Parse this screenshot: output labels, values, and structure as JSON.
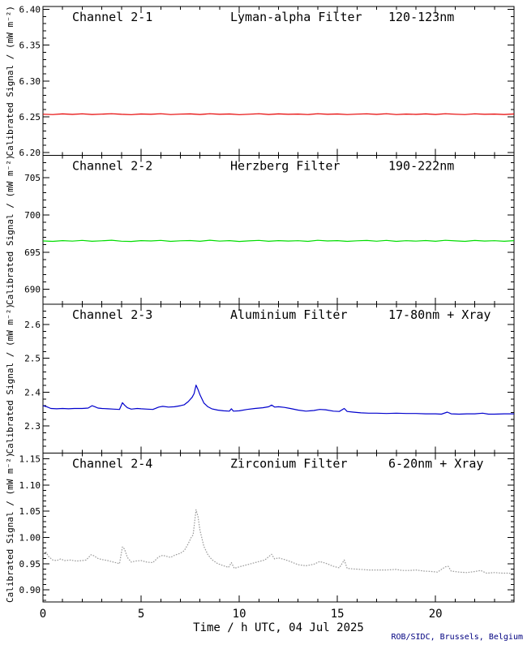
{
  "window": {
    "background": "#ffffff"
  },
  "chart_data": {
    "type": "line",
    "xlabel": "Time / h UTC, 04 Jul 2025",
    "footer": "ROB/SIDC, Brussels, Belgium",
    "footer_color": "#000080",
    "axis_color": "#000000",
    "grid": "off",
    "legend": "none",
    "x_range": [
      0,
      24
    ],
    "x_major_ticks": [
      0,
      5,
      10,
      15,
      20
    ],
    "x_tick_labels": [
      "0",
      "5",
      "10",
      "15",
      "20"
    ],
    "x_minor_step": 1,
    "panels": [
      {
        "name": "channel-2-1",
        "channel": "Channel 2-1",
        "filter": "Lyman-alpha Filter",
        "band": "120-123nm",
        "color": "#e60000",
        "style": "solid",
        "ylabel": "Calibrated Signal / (mW m⁻²)",
        "y_range": [
          6.196,
          6.404
        ],
        "y_major_ticks": [
          6.2,
          6.25,
          6.3,
          6.35,
          6.4
        ],
        "y_tick_labels": [
          "6.20",
          "6.25",
          "6.30",
          "6.35",
          "6.40"
        ],
        "y_minor_step": 0.01,
        "x0": 0,
        "dx": 0.5,
        "y": [
          6.2535,
          6.253,
          6.2539,
          6.2532,
          6.254,
          6.2531,
          6.2536,
          6.2542,
          6.2533,
          6.2529,
          6.2538,
          6.2534,
          6.2541,
          6.253,
          6.2536,
          6.2539,
          6.2531,
          6.2542,
          6.2533,
          6.2538,
          6.2529,
          6.2535,
          6.2541,
          6.2531,
          6.2539,
          6.2533,
          6.2537,
          6.253,
          6.2542,
          6.2534,
          6.2538,
          6.253,
          6.2536,
          6.254,
          6.2532,
          6.2541,
          6.253,
          6.2537,
          6.2532,
          6.2539,
          6.2531,
          6.2542,
          6.2535,
          6.253,
          6.254,
          6.2533,
          6.2537,
          6.2531,
          6.2538
        ]
      },
      {
        "name": "channel-2-2",
        "channel": "Channel 2-2",
        "filter": "Herzberg Filter",
        "band": "190-222nm",
        "color": "#00dd00",
        "style": "solid",
        "ylabel": "Calibrated Signal / (mW m⁻²)",
        "y_range": [
          688,
          708
        ],
        "y_major_ticks": [
          690,
          695,
          700,
          705
        ],
        "y_tick_labels": [
          "690",
          "695",
          "700",
          "705"
        ],
        "y_minor_step": 1,
        "x0": 0,
        "dx": 0.5,
        "y": [
          696.5,
          696.45,
          696.55,
          696.48,
          696.58,
          696.46,
          696.52,
          696.6,
          696.47,
          696.44,
          696.54,
          696.5,
          696.58,
          696.45,
          696.52,
          696.56,
          696.46,
          696.6,
          696.48,
          696.55,
          696.44,
          696.51,
          696.58,
          696.46,
          696.55,
          696.49,
          696.53,
          696.45,
          696.59,
          696.5,
          696.54,
          696.45,
          696.52,
          696.57,
          696.47,
          696.58,
          696.45,
          696.53,
          696.48,
          696.56,
          696.46,
          696.59,
          696.51,
          696.45,
          696.57,
          696.49,
          696.53,
          696.46,
          696.54
        ]
      },
      {
        "name": "channel-2-3",
        "channel": "Channel 2-3",
        "filter": "Aluminium Filter",
        "band": "17-80nm + Xray",
        "color": "#0000cd",
        "style": "solid",
        "ylabel": "Calibrated Signal / (mW m⁻²)",
        "y_range": [
          2.22,
          2.66
        ],
        "y_major_ticks": [
          2.3,
          2.4,
          2.5,
          2.6
        ],
        "y_tick_labels": [
          "2.3",
          "2.4",
          "2.5",
          "2.6"
        ],
        "y_minor_step": 0.02,
        "points": [
          [
            0,
            2.36
          ],
          [
            0.2,
            2.357
          ],
          [
            0.4,
            2.352
          ],
          [
            0.7,
            2.351
          ],
          [
            1.0,
            2.352
          ],
          [
            1.3,
            2.351
          ],
          [
            1.6,
            2.352
          ],
          [
            2.0,
            2.352
          ],
          [
            2.3,
            2.353
          ],
          [
            2.5,
            2.36
          ],
          [
            2.65,
            2.357
          ],
          [
            2.8,
            2.353
          ],
          [
            3.0,
            2.352
          ],
          [
            3.3,
            2.351
          ],
          [
            3.6,
            2.35
          ],
          [
            3.9,
            2.349
          ],
          [
            4.05,
            2.369
          ],
          [
            4.15,
            2.362
          ],
          [
            4.3,
            2.354
          ],
          [
            4.5,
            2.35
          ],
          [
            4.8,
            2.352
          ],
          [
            5.0,
            2.351
          ],
          [
            5.3,
            2.35
          ],
          [
            5.6,
            2.349
          ],
          [
            5.9,
            2.356
          ],
          [
            6.1,
            2.358
          ],
          [
            6.4,
            2.356
          ],
          [
            6.7,
            2.357
          ],
          [
            7.0,
            2.36
          ],
          [
            7.2,
            2.363
          ],
          [
            7.4,
            2.372
          ],
          [
            7.6,
            2.385
          ],
          [
            7.7,
            2.396
          ],
          [
            7.8,
            2.421
          ],
          [
            7.9,
            2.408
          ],
          [
            8.0,
            2.392
          ],
          [
            8.2,
            2.368
          ],
          [
            8.4,
            2.357
          ],
          [
            8.6,
            2.351
          ],
          [
            8.9,
            2.347
          ],
          [
            9.2,
            2.345
          ],
          [
            9.5,
            2.344
          ],
          [
            9.6,
            2.351
          ],
          [
            9.7,
            2.344
          ],
          [
            10.0,
            2.345
          ],
          [
            10.4,
            2.349
          ],
          [
            10.8,
            2.352
          ],
          [
            11.2,
            2.354
          ],
          [
            11.5,
            2.357
          ],
          [
            11.65,
            2.362
          ],
          [
            11.8,
            2.356
          ],
          [
            12.0,
            2.357
          ],
          [
            12.3,
            2.355
          ],
          [
            12.6,
            2.352
          ],
          [
            13.0,
            2.347
          ],
          [
            13.4,
            2.344
          ],
          [
            13.8,
            2.346
          ],
          [
            14.1,
            2.349
          ],
          [
            14.4,
            2.348
          ],
          [
            14.8,
            2.344
          ],
          [
            15.1,
            2.343
          ],
          [
            15.35,
            2.352
          ],
          [
            15.5,
            2.343
          ],
          [
            15.8,
            2.341
          ],
          [
            16.2,
            2.339
          ],
          [
            16.6,
            2.338
          ],
          [
            17.0,
            2.338
          ],
          [
            17.5,
            2.337
          ],
          [
            18.0,
            2.338
          ],
          [
            18.5,
            2.337
          ],
          [
            19.0,
            2.337
          ],
          [
            19.5,
            2.336
          ],
          [
            20.0,
            2.336
          ],
          [
            20.3,
            2.335
          ],
          [
            20.6,
            2.341
          ],
          [
            20.8,
            2.336
          ],
          [
            21.2,
            2.335
          ],
          [
            21.6,
            2.336
          ],
          [
            22.0,
            2.336
          ],
          [
            22.4,
            2.338
          ],
          [
            22.7,
            2.335
          ],
          [
            23.0,
            2.335
          ],
          [
            23.5,
            2.336
          ],
          [
            24,
            2.336
          ]
        ]
      },
      {
        "name": "channel-2-4",
        "channel": "Channel 2-4",
        "filter": "Zirconium Filter",
        "band": "6-20nm + Xray",
        "color": "#9a9a9a",
        "style": "dotted",
        "ylabel": "Calibrated Signal / (mW m⁻²)",
        "y_range": [
          0.877,
          1.161
        ],
        "y_major_ticks": [
          0.9,
          0.95,
          1.0,
          1.05,
          1.1,
          1.15
        ],
        "y_tick_labels": [
          "0.90",
          "0.95",
          "1.00",
          "1.05",
          "1.10",
          "1.15"
        ],
        "y_minor_step": 0.01,
        "points": [
          [
            0,
            0.97
          ],
          [
            0.15,
            0.972
          ],
          [
            0.3,
            0.963
          ],
          [
            0.5,
            0.957
          ],
          [
            0.7,
            0.956
          ],
          [
            0.9,
            0.959
          ],
          [
            1.1,
            0.956
          ],
          [
            1.4,
            0.957
          ],
          [
            1.7,
            0.955
          ],
          [
            2.0,
            0.956
          ],
          [
            2.2,
            0.957
          ],
          [
            2.45,
            0.967
          ],
          [
            2.6,
            0.965
          ],
          [
            2.8,
            0.96
          ],
          [
            3.0,
            0.958
          ],
          [
            3.3,
            0.956
          ],
          [
            3.6,
            0.953
          ],
          [
            3.9,
            0.95
          ],
          [
            4.05,
            0.982
          ],
          [
            4.15,
            0.978
          ],
          [
            4.3,
            0.962
          ],
          [
            4.5,
            0.953
          ],
          [
            4.7,
            0.955
          ],
          [
            5.0,
            0.956
          ],
          [
            5.3,
            0.953
          ],
          [
            5.6,
            0.952
          ],
          [
            5.9,
            0.963
          ],
          [
            6.1,
            0.966
          ],
          [
            6.3,
            0.964
          ],
          [
            6.5,
            0.962
          ],
          [
            6.7,
            0.966
          ],
          [
            7.0,
            0.97
          ],
          [
            7.2,
            0.975
          ],
          [
            7.4,
            0.988
          ],
          [
            7.55,
            1.0
          ],
          [
            7.65,
            1.005
          ],
          [
            7.8,
            1.053
          ],
          [
            7.9,
            1.04
          ],
          [
            8.0,
            1.013
          ],
          [
            8.2,
            0.983
          ],
          [
            8.4,
            0.967
          ],
          [
            8.6,
            0.958
          ],
          [
            8.9,
            0.95
          ],
          [
            9.2,
            0.946
          ],
          [
            9.45,
            0.943
          ],
          [
            9.6,
            0.952
          ],
          [
            9.75,
            0.941
          ],
          [
            10.0,
            0.944
          ],
          [
            10.3,
            0.947
          ],
          [
            10.7,
            0.951
          ],
          [
            11.0,
            0.954
          ],
          [
            11.3,
            0.957
          ],
          [
            11.65,
            0.968
          ],
          [
            11.8,
            0.959
          ],
          [
            12.0,
            0.961
          ],
          [
            12.3,
            0.958
          ],
          [
            12.6,
            0.954
          ],
          [
            13.0,
            0.948
          ],
          [
            13.4,
            0.946
          ],
          [
            13.8,
            0.949
          ],
          [
            14.1,
            0.954
          ],
          [
            14.4,
            0.951
          ],
          [
            14.8,
            0.945
          ],
          [
            15.1,
            0.942
          ],
          [
            15.35,
            0.957
          ],
          [
            15.5,
            0.941
          ],
          [
            15.8,
            0.94
          ],
          [
            16.2,
            0.939
          ],
          [
            16.6,
            0.938
          ],
          [
            17.0,
            0.938
          ],
          [
            17.5,
            0.938
          ],
          [
            18.0,
            0.939
          ],
          [
            18.3,
            0.937
          ],
          [
            18.7,
            0.937
          ],
          [
            19.0,
            0.938
          ],
          [
            19.4,
            0.936
          ],
          [
            19.8,
            0.935
          ],
          [
            20.1,
            0.934
          ],
          [
            20.5,
            0.944
          ],
          [
            20.65,
            0.945
          ],
          [
            20.8,
            0.936
          ],
          [
            21.2,
            0.934
          ],
          [
            21.6,
            0.933
          ],
          [
            22.0,
            0.935
          ],
          [
            22.3,
            0.937
          ],
          [
            22.6,
            0.932
          ],
          [
            23.0,
            0.933
          ],
          [
            23.4,
            0.932
          ],
          [
            23.7,
            0.932
          ],
          [
            24,
            0.931
          ]
        ]
      }
    ]
  }
}
